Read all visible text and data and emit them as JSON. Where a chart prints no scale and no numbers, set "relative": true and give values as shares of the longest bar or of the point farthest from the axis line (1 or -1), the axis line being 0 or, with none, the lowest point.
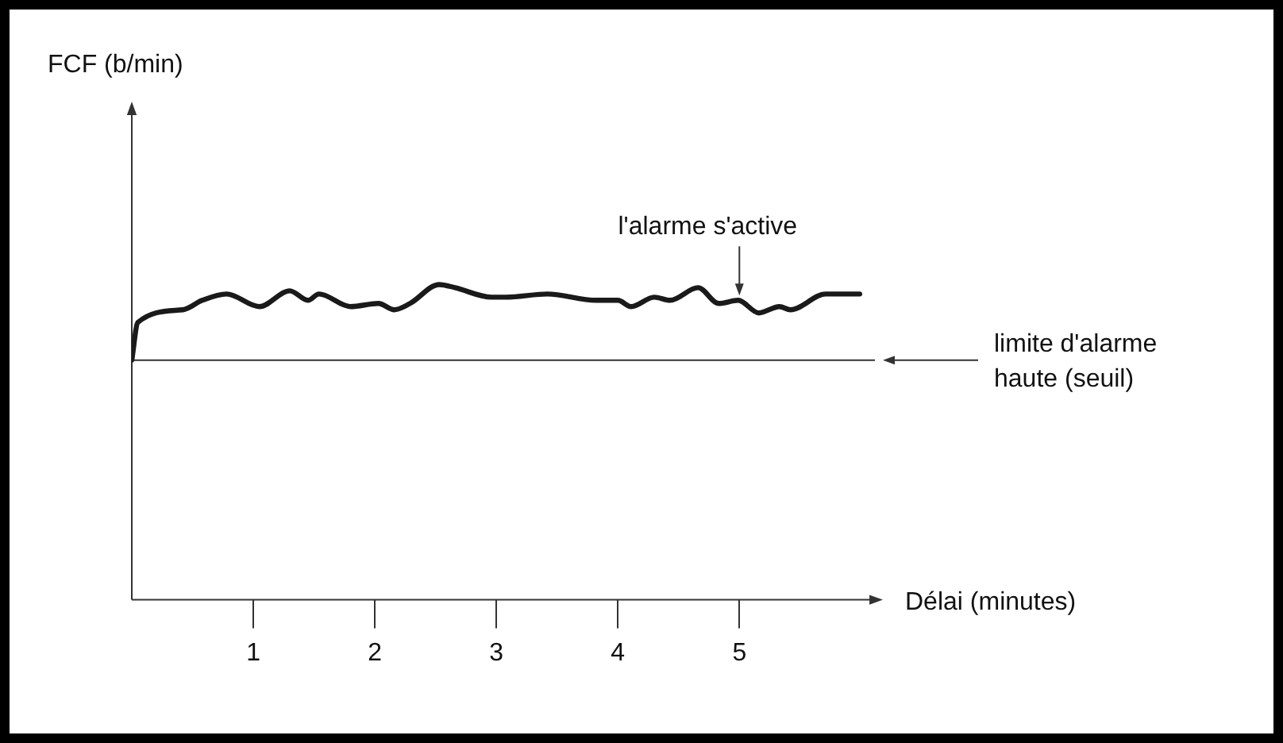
{
  "chart_data": {
    "type": "line",
    "relative": true,
    "xlabel": "Délai (minutes)",
    "xlim": [
      0,
      6.05
    ],
    "xticks": [
      1,
      2,
      3,
      4,
      5
    ],
    "grid": false,
    "legend": false,
    "marker": "none",
    "line_style": "solid",
    "series": [
      {
        "color": "#1a1a1a",
        "x": [
          0,
          0.05,
          0.42,
          0.58,
          0.78,
          1.05,
          1.3,
          1.45,
          1.54,
          1.8,
          2.03,
          2.16,
          2.29,
          2.53,
          2.66,
          2.96,
          3.08,
          3.42,
          3.82,
          4.0,
          4.11,
          4.3,
          4.43,
          4.66,
          4.83,
          4.99,
          5.16,
          5.33,
          5.42,
          5.71,
          5.99
        ],
        "values": [
          0.76,
          0.88,
          0.92,
          0.95,
          0.97,
          0.93,
          0.98,
          0.95,
          0.97,
          0.93,
          0.94,
          0.92,
          0.94,
          1,
          0.99,
          0.96,
          0.96,
          0.97,
          0.95,
          0.95,
          0.93,
          0.96,
          0.95,
          0.99,
          0.94,
          0.95,
          0.91,
          0.93,
          0.92,
          0.97,
          0.97
        ]
      }
    ],
    "ref_lines": [
      {
        "axis": "y",
        "value": 0.76,
        "label": "limite d'alarme haute (seuil)",
        "color": "#333333"
      }
    ],
    "annotations": [
      "FCF (b/min)",
      {
        "text": "l'alarme s'active",
        "x": 5,
        "y": 0.95
      }
    ]
  }
}
